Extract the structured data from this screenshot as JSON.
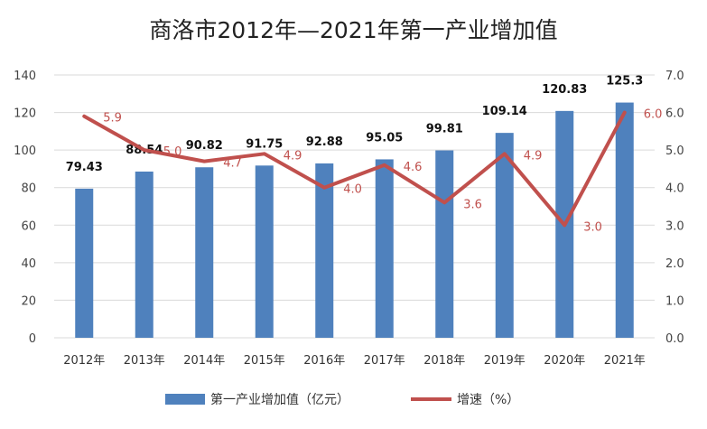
{
  "chart_data": {
    "type": "bar+line",
    "title": "商洛市2012年—2021年第一产业增加值",
    "categories": [
      "2012年",
      "2013年",
      "2014年",
      "2015年",
      "2016年",
      "2017年",
      "2018年",
      "2019年",
      "2020年",
      "2021年"
    ],
    "series": [
      {
        "name": "第一产业增加值（亿元）",
        "type": "bar",
        "axis": "left",
        "color": "#4f81bd",
        "values": [
          79.43,
          88.54,
          90.82,
          91.75,
          92.88,
          95.05,
          99.81,
          109.14,
          120.83,
          125.3
        ],
        "labels": [
          "79.43",
          "88.54",
          "90.82",
          "91.75",
          "92.88",
          "95.05",
          "99.81",
          "109.14",
          "120.83",
          "125.3"
        ]
      },
      {
        "name": "增速（%）",
        "type": "line",
        "axis": "right",
        "color": "#c0504d",
        "values": [
          5.9,
          5.0,
          4.7,
          4.9,
          4.0,
          4.6,
          3.6,
          4.9,
          3.0,
          6.0
        ],
        "labels": [
          "5.9",
          "5.0",
          "4.7",
          "4.9",
          "4.0",
          "4.6",
          "3.6",
          "4.9",
          "3.0",
          "6.0"
        ]
      }
    ],
    "y_left": {
      "min": 0,
      "max": 140,
      "step": 20,
      "ticks": [
        "0",
        "20",
        "40",
        "60",
        "80",
        "100",
        "120",
        "140"
      ]
    },
    "y_right": {
      "min": 0,
      "max": 7,
      "step": 1,
      "ticks": [
        "0.0",
        "1.0",
        "2.0",
        "3.0",
        "4.0",
        "5.0",
        "6.0",
        "7.0"
      ]
    },
    "grid": true,
    "legend_position": "bottom"
  }
}
